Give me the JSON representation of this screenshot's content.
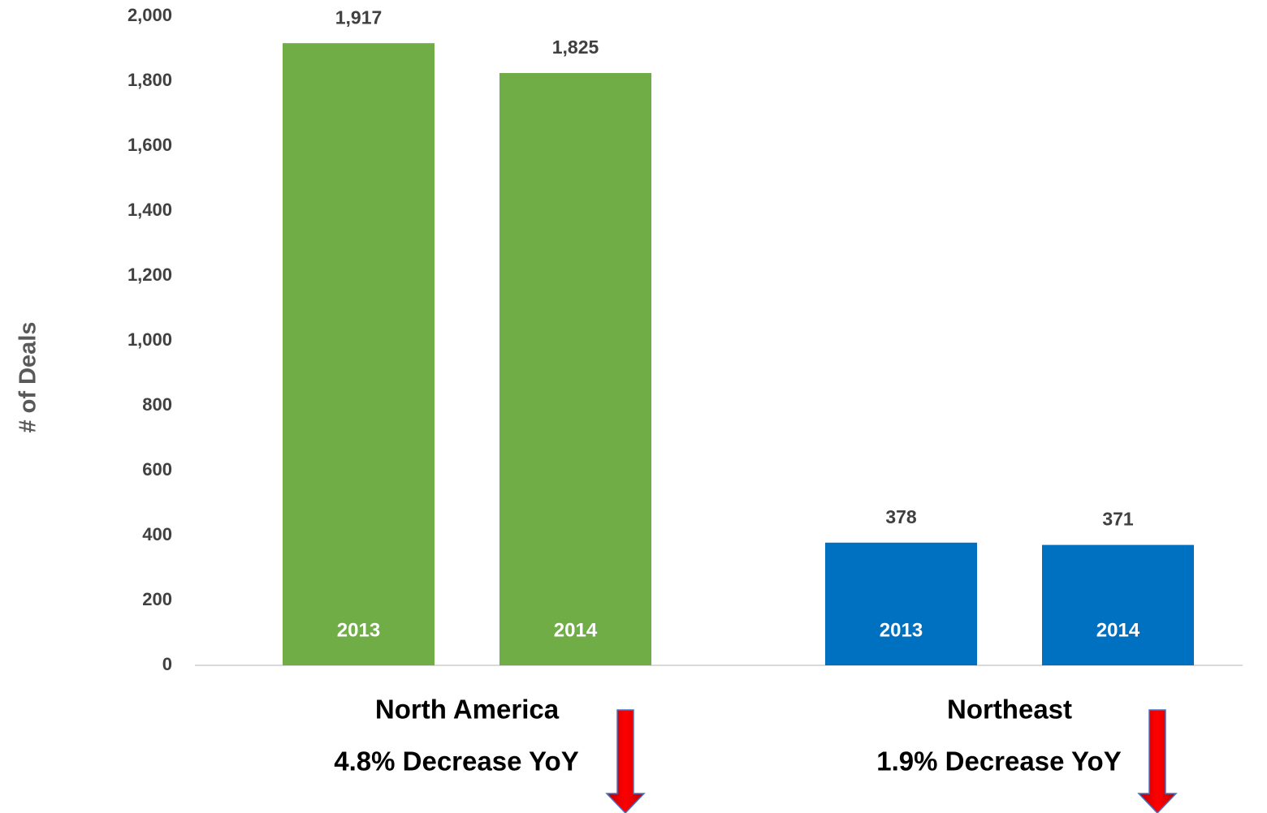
{
  "chart_data": {
    "type": "bar",
    "y_label": "# of Deals",
    "categories": [
      "North America",
      "Northeast"
    ],
    "colors": [
      "#70ad47",
      "#0070c0"
    ],
    "annotations": [
      "4.8% Decrease YoY",
      "1.9% Decrease YoY"
    ],
    "series": [
      {
        "name": "2013",
        "values": [
          1917,
          378
        ],
        "value_labels": [
          "1,917",
          "378"
        ]
      },
      {
        "name": "2014",
        "values": [
          1825,
          371
        ],
        "value_labels": [
          "1,825",
          "371"
        ]
      }
    ],
    "ylim": [
      0,
      2000
    ],
    "yticks": [
      0,
      200,
      400,
      600,
      800,
      {
        "value": 1000,
        "label": "1,000"
      },
      {
        "value": 1200,
        "label": "1,200"
      },
      {
        "value": 1400,
        "label": "1,400"
      },
      {
        "value": 1600,
        "label": "1,600"
      },
      {
        "value": 1800,
        "label": "1,800"
      },
      {
        "value": 2000,
        "label": "2,000"
      }
    ],
    "grid": false
  }
}
